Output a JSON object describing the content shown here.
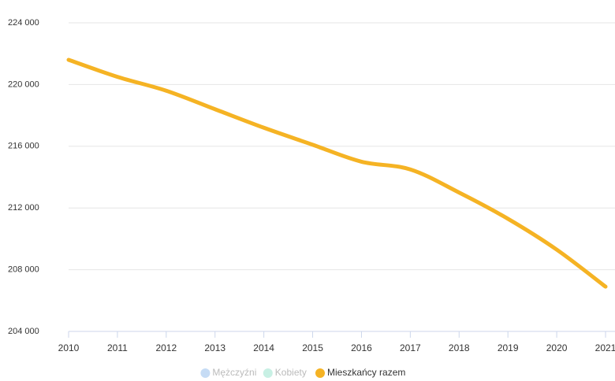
{
  "chart_data": {
    "type": "line",
    "x": [
      2010,
      2011,
      2012,
      2013,
      2014,
      2015,
      2016,
      2017,
      2018,
      2019,
      2020,
      2021
    ],
    "series": [
      {
        "name": "Mężczyźni",
        "color": "#c6dcf5",
        "hidden": true,
        "values": [
          null,
          null,
          null,
          null,
          null,
          null,
          null,
          null,
          null,
          null,
          null,
          null
        ]
      },
      {
        "name": "Kobiety",
        "color": "#c8f0e4",
        "hidden": true,
        "values": [
          null,
          null,
          null,
          null,
          null,
          null,
          null,
          null,
          null,
          null,
          null,
          null
        ]
      },
      {
        "name": "Mieszkańcy razem",
        "color": "#f5b324",
        "hidden": false,
        "values": [
          221600,
          220500,
          219600,
          218400,
          217200,
          216100,
          215000,
          214500,
          213000,
          211300,
          209300,
          206900
        ]
      }
    ],
    "xlim": [
      2010,
      2021
    ],
    "xticks": [
      2010,
      2011,
      2012,
      2013,
      2014,
      2015,
      2016,
      2017,
      2018,
      2019,
      2020,
      2021
    ],
    "ylim": [
      204000,
      224000
    ],
    "yticks": [
      {
        "value": 204000,
        "label": "204 000"
      },
      {
        "value": 208000,
        "label": "208 000"
      },
      {
        "value": 212000,
        "label": "212 000"
      },
      {
        "value": 216000,
        "label": "216 000"
      },
      {
        "value": 220000,
        "label": "220 000"
      },
      {
        "value": 224000,
        "label": "224 000"
      }
    ],
    "grid": true
  }
}
